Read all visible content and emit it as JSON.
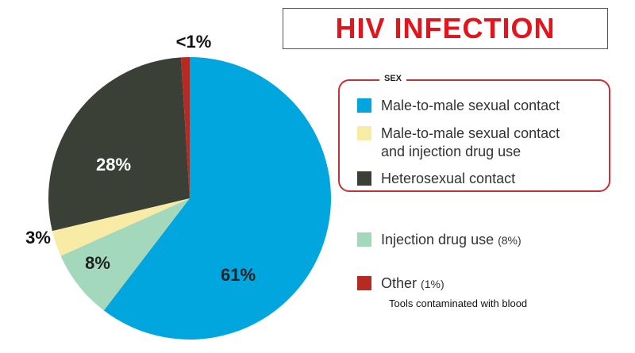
{
  "title": "HIV INFECTION",
  "colors": {
    "title": "#e2151c",
    "male_to_male": "#00a6dd",
    "male_to_male_idu": "#f8eba6",
    "heterosexual": "#3a4036",
    "idu": "#a4d8bd",
    "other": "#b52b23",
    "group_border": "#c8303a"
  },
  "legend": {
    "group_caption": "SEX",
    "male_to_male": "Male-to-male sexual contact",
    "male_to_male_idu_line1": "Male-to-male sexual contact",
    "male_to_male_idu_line2": "and injection drug use",
    "heterosexual": "Heterosexual contact",
    "idu": "Injection drug use",
    "idu_note": "(8%)",
    "other": "Other",
    "other_note": "(1%)",
    "other_detail": "Tools contaminated with blood"
  },
  "chart_data": {
    "type": "pie",
    "title": "HIV INFECTION",
    "slices": [
      {
        "name": "Male-to-male sexual contact",
        "value": 61,
        "label": "61%",
        "color": "#00a6dd"
      },
      {
        "name": "Injection drug use",
        "value": 8,
        "label": "8%",
        "color": "#a4d8bd"
      },
      {
        "name": "Male-to-male sexual contact and injection drug use",
        "value": 3,
        "label": "3%",
        "color": "#f8eba6"
      },
      {
        "name": "Heterosexual contact",
        "value": 28,
        "label": "28%",
        "color": "#3a4036"
      },
      {
        "name": "Other",
        "value": 1,
        "label": "<1%",
        "color": "#b52b23"
      }
    ],
    "start": "top",
    "direction": "clockwise",
    "legend_position": "right"
  }
}
